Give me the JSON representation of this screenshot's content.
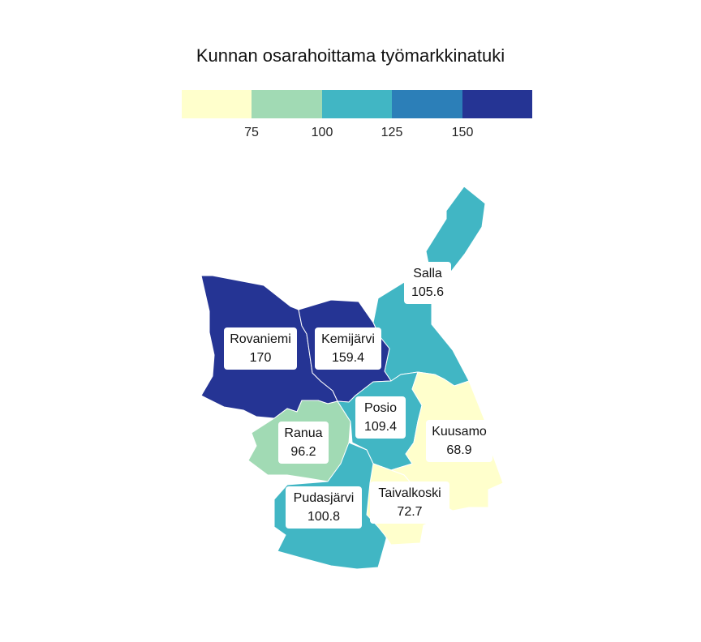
{
  "title": "Kunnan osarahoittama työmarkkinatuki",
  "legend": {
    "colors": [
      "#ffffcc",
      "#a1dab4",
      "#41b6c4",
      "#2c7fb8",
      "#253494"
    ],
    "ticks": [
      "75",
      "100",
      "125",
      "150"
    ]
  },
  "municipalities": [
    {
      "name": "Rovaniemi",
      "value": "170",
      "color": "#253494"
    },
    {
      "name": "Kemijärvi",
      "value": "159.4",
      "color": "#253494"
    },
    {
      "name": "Salla",
      "value": "105.6",
      "color": "#41b6c4"
    },
    {
      "name": "Posio",
      "value": "109.4",
      "color": "#41b6c4"
    },
    {
      "name": "Ranua",
      "value": "96.2",
      "color": "#a1dab4"
    },
    {
      "name": "Kuusamo",
      "value": "68.9",
      "color": "#ffffcc"
    },
    {
      "name": "Pudasjärvi",
      "value": "100.8",
      "color": "#41b6c4"
    },
    {
      "name": "Taivalkoski",
      "value": "72.7",
      "color": "#ffffcc"
    }
  ]
}
